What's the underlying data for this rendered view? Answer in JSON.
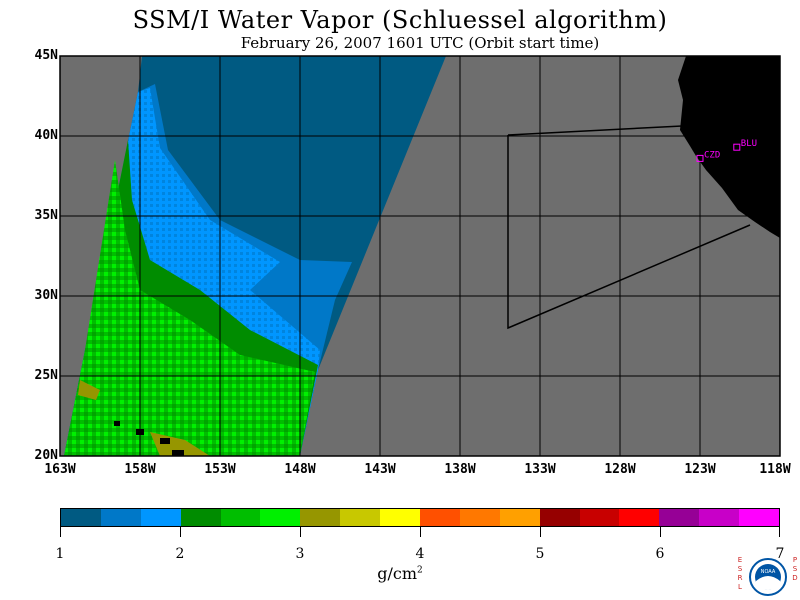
{
  "title": "SSM/I Water Vapor (Schluessel algorithm)",
  "subtitle": "February 26, 2007  1601 UTC  (Orbit start time)",
  "map": {
    "lat_labels": [
      "45N",
      "40N",
      "35N",
      "30N",
      "25N",
      "20N"
    ],
    "lon_labels": [
      "163W",
      "158W",
      "153W",
      "148W",
      "143W",
      "138W",
      "133W",
      "128W",
      "123W",
      "118W"
    ],
    "stations": [
      {
        "id": "CZD",
        "lon": -123.0,
        "lat": 38.6
      },
      {
        "id": "BLU",
        "lon": -120.7,
        "lat": 39.3
      }
    ],
    "colors": {
      "nodata": "#6e6e6e",
      "land": "#000000",
      "station": "#ff00ff"
    }
  },
  "colorbar": {
    "tick_labels": [
      "1",
      "2",
      "3",
      "4",
      "5",
      "6",
      "7"
    ],
    "unit": "g/cm",
    "unit_superscript": "2",
    "colors": [
      "#005a82",
      "#0078c8",
      "#0096ff",
      "#008c00",
      "#00be00",
      "#00f000",
      "#969600",
      "#c8c800",
      "#ffff00",
      "#ff5000",
      "#ff7800",
      "#ffa000",
      "#960000",
      "#c80000",
      "#ff0000",
      "#960096",
      "#c800c8",
      "#ff00ff"
    ]
  },
  "logo": {
    "left_text": "ESRL",
    "right_text": "PSD",
    "center_text": "NOAA"
  }
}
